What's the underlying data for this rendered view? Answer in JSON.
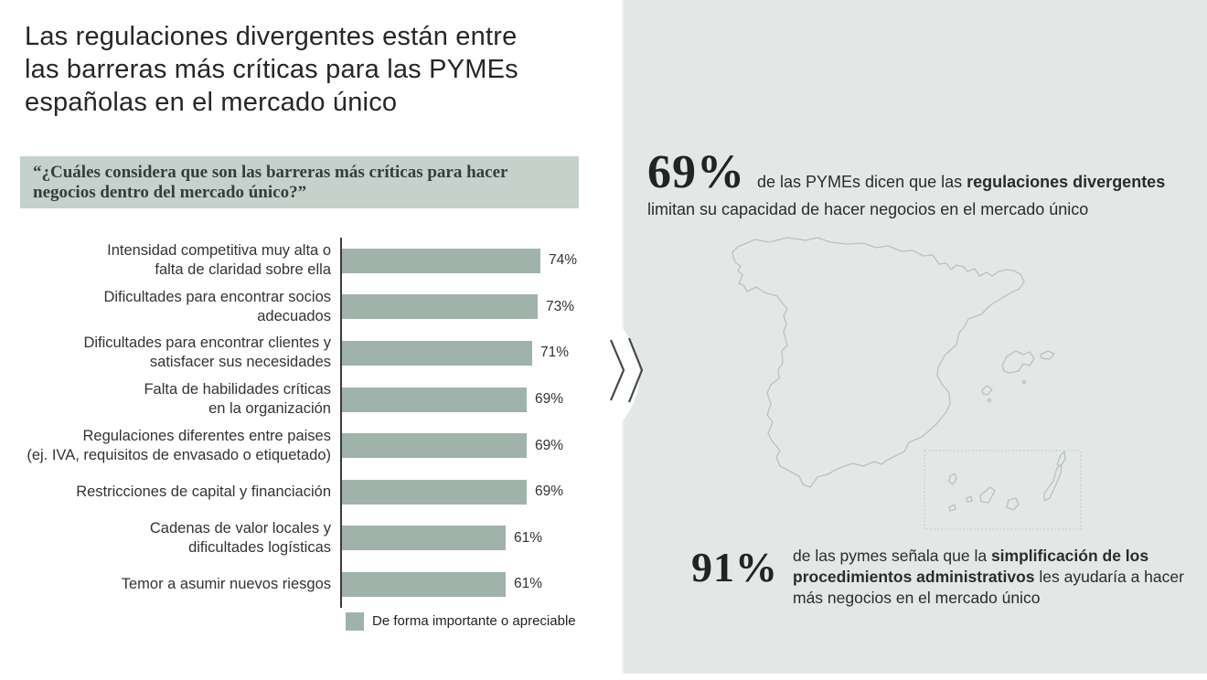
{
  "title": "Las regulaciones divergentes están entre\nlas barreras más críticas para las PYMEs\nespañolas en el mercado único",
  "question": "“¿Cuáles considera que son las barreras más críticas para hacer\nnegocios dentro del mercado único?”",
  "chart_data": {
    "type": "bar",
    "orientation": "horizontal",
    "unit": "%",
    "xlim": [
      0,
      100
    ],
    "categories": [
      "Intensidad competitiva muy alta o\nfalta de claridad sobre ella",
      "Dificultades para encontrar socios\nadecuados",
      "Dificultades para encontrar clientes y\nsatisfacer sus necesidades",
      "Falta de habilidades críticas\nen la organización",
      "Regulaciones diferentes entre paises\n(ej. IVA, requisitos de envasado o etiquetado)",
      "Restricciones de capital y financiación",
      "Cadenas de valor locales y\ndificultades logísticas",
      "Temor a asumir nuevos riesgos"
    ],
    "values": [
      74,
      73,
      71,
      69,
      69,
      69,
      61,
      61
    ],
    "value_labels": [
      "74%",
      "73%",
      "71%",
      "69%",
      "69%",
      "69%",
      "61%",
      "61%"
    ],
    "legend": [
      {
        "label": "De forma importante o apreciable",
        "color": "#9fb3ab"
      }
    ],
    "bar_color": "#9fb3ab",
    "grid": false
  },
  "stats": {
    "regulations": {
      "value": "69%",
      "prefix": "de las PYMEs dicen que las ",
      "bold": "regulaciones divergentes",
      "suffix": " limitan su capacidad de hacer negocios en el mercado único"
    },
    "simplification": {
      "value": "91%",
      "prefix": "de las pymes señala que la ",
      "bold": "simplificación de los procedimientos administrativos",
      "suffix": " les ayudaría a hacer más negocios en el mercado único"
    }
  },
  "icons": {
    "chevron": "double-chevron-right",
    "map": "spain-outline-map-with-balearic-and-canary-islands"
  },
  "colors": {
    "panel_bg": "#e3e8e6",
    "question_bg": "#c5d1cb",
    "bar": "#9fb3ab",
    "map_stroke": "#b7c2be",
    "axis": "#3b3b3b"
  }
}
